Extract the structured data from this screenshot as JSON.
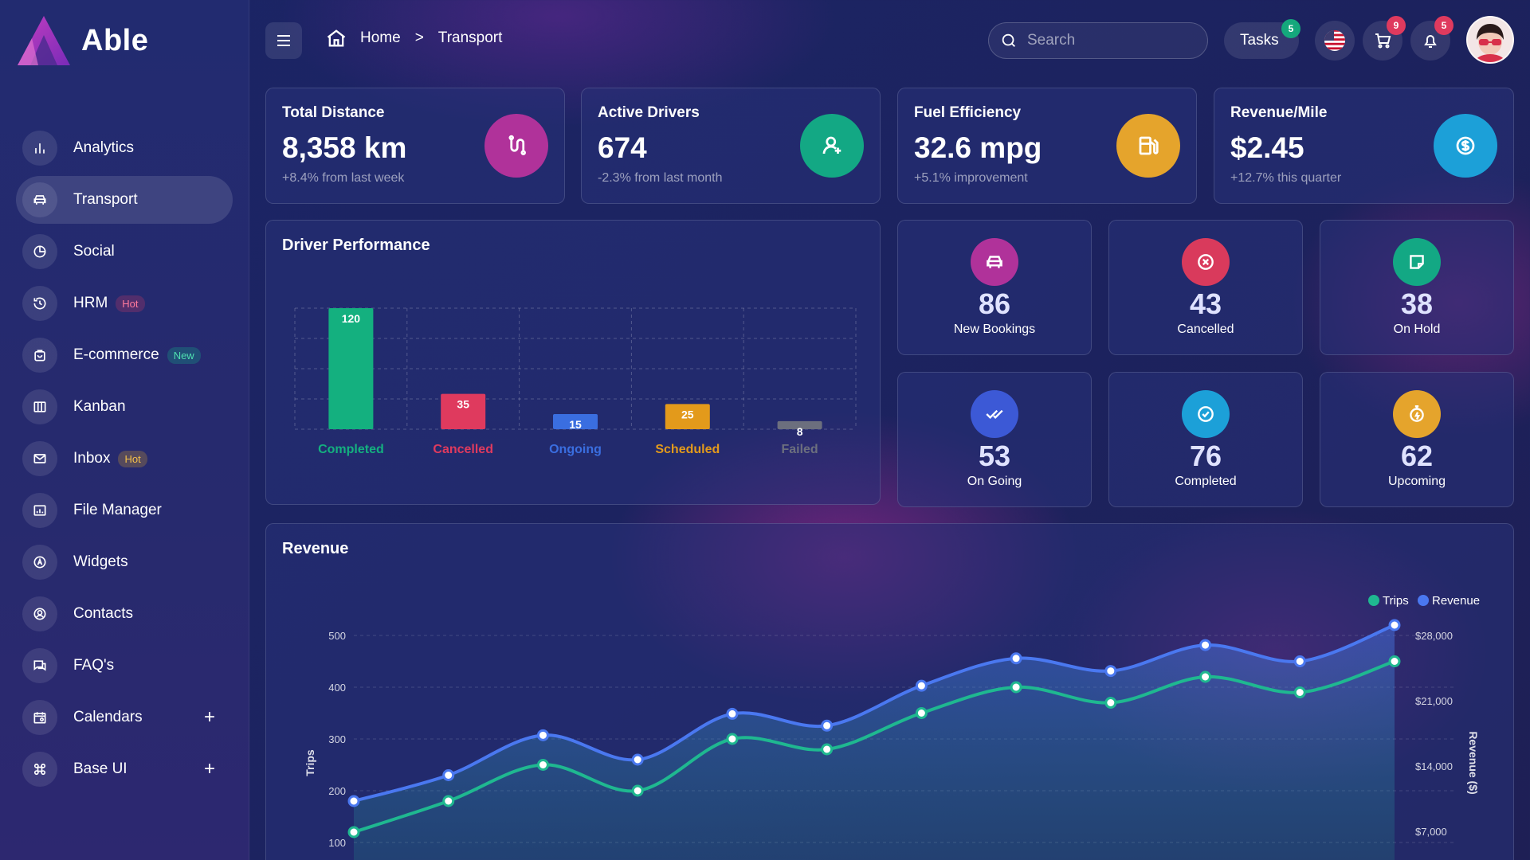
{
  "brand": {
    "name": "Able"
  },
  "sidebar": {
    "items": [
      {
        "label": "Analytics",
        "icon": "bar-chart-icon"
      },
      {
        "label": "Transport",
        "icon": "car-icon",
        "active": true
      },
      {
        "label": "Social",
        "icon": "pie-chart-icon"
      },
      {
        "label": "HRM",
        "icon": "history-icon",
        "badge": "Hot"
      },
      {
        "label": "E-commerce",
        "icon": "shopping-bag-icon",
        "badge": "New"
      },
      {
        "label": "Kanban",
        "icon": "columns-icon"
      },
      {
        "label": "Inbox",
        "icon": "mail-icon",
        "badge": "Hot"
      },
      {
        "label": "File Manager",
        "icon": "folder-chart-icon"
      },
      {
        "label": "Widgets",
        "icon": "compass-icon"
      },
      {
        "label": "Contacts",
        "icon": "user-circle-icon"
      },
      {
        "label": "FAQ's",
        "icon": "chat-icon"
      },
      {
        "label": "Calendars",
        "icon": "calendar-icon",
        "expand": "+"
      },
      {
        "label": "Base UI",
        "icon": "command-icon",
        "expand": "+"
      }
    ]
  },
  "header": {
    "breadcrumb": {
      "home": "Home",
      "separator": ">",
      "current": "Transport"
    },
    "search": {
      "placeholder": "Search"
    },
    "tasks": {
      "label": "Tasks",
      "count": "5"
    },
    "cart": {
      "count": "9"
    },
    "notifications": {
      "count": "5"
    }
  },
  "stats": [
    {
      "title": "Total Distance",
      "value": "8,358 km",
      "sub": "+8.4% from last week",
      "icon": "route-icon",
      "color": "#b0329a"
    },
    {
      "title": "Active Drivers",
      "value": "674",
      "sub": "-2.3% from last month",
      "icon": "user-pin-icon",
      "color": "#13a884"
    },
    {
      "title": "Fuel Efficiency",
      "value": "32.6 mpg",
      "sub": "+5.1% improvement",
      "icon": "fuel-icon",
      "color": "#e5a42c"
    },
    {
      "title": "Revenue/Mile",
      "value": "$2.45",
      "sub": "+12.7% this quarter",
      "icon": "dollar-coin-icon",
      "color": "#1ca0d8"
    }
  ],
  "driver_performance": {
    "title": "Driver Performance"
  },
  "mini_stats": [
    {
      "value": "86",
      "label": "New Bookings",
      "icon": "car-icon",
      "color": "#b0329a"
    },
    {
      "value": "43",
      "label": "Cancelled",
      "icon": "x-circle-icon",
      "color": "#d93a5c"
    },
    {
      "value": "38",
      "label": "On Hold",
      "icon": "note-icon",
      "color": "#13a884"
    },
    {
      "value": "53",
      "label": "On Going",
      "icon": "double-check-icon",
      "color": "#3c59d6"
    },
    {
      "value": "76",
      "label": "Completed",
      "icon": "check-circle-icon",
      "color": "#1ca0d8"
    },
    {
      "value": "62",
      "label": "Upcoming",
      "icon": "timer-icon",
      "color": "#e5a42c"
    }
  ],
  "revenue": {
    "title": "Revenue"
  },
  "chart_data": [
    {
      "type": "bar",
      "title": "Driver Performance",
      "categories": [
        "Completed",
        "Cancelled",
        "Ongoing",
        "Scheduled",
        "Failed"
      ],
      "values": [
        120,
        35,
        15,
        25,
        8
      ],
      "colors": [
        "#14b07f",
        "#df3a5e",
        "#3a6ee0",
        "#e39a1b",
        "#6c6f7e"
      ],
      "ylim": [
        0,
        120
      ],
      "grid": true
    },
    {
      "type": "line",
      "title": "Revenue",
      "x": [
        1,
        2,
        3,
        4,
        5,
        6,
        7,
        8,
        9,
        10,
        11,
        12
      ],
      "series": [
        {
          "name": "Trips",
          "axis": "left",
          "color": "#1fb890",
          "values": [
            120,
            180,
            250,
            200,
            300,
            280,
            350,
            400,
            370,
            420,
            390,
            450
          ]
        },
        {
          "name": "Revenue",
          "axis": "right",
          "color": "#4a78f0",
          "values": [
            5600,
            9100,
            14500,
            11200,
            17400,
            15800,
            21200,
            24900,
            23200,
            26700,
            24500,
            29400
          ]
        }
      ],
      "ylabel": "Trips",
      "y2label": "Revenue ($)",
      "yticks": [
        "500",
        "400",
        "300",
        "200",
        "100"
      ],
      "y2ticks": [
        "$28,000",
        "$21,000",
        "$14,000",
        "$7,000"
      ],
      "ylim": [
        100,
        500
      ],
      "y2lim": [
        0,
        28000
      ],
      "legend": "top-right",
      "grid": true
    }
  ]
}
